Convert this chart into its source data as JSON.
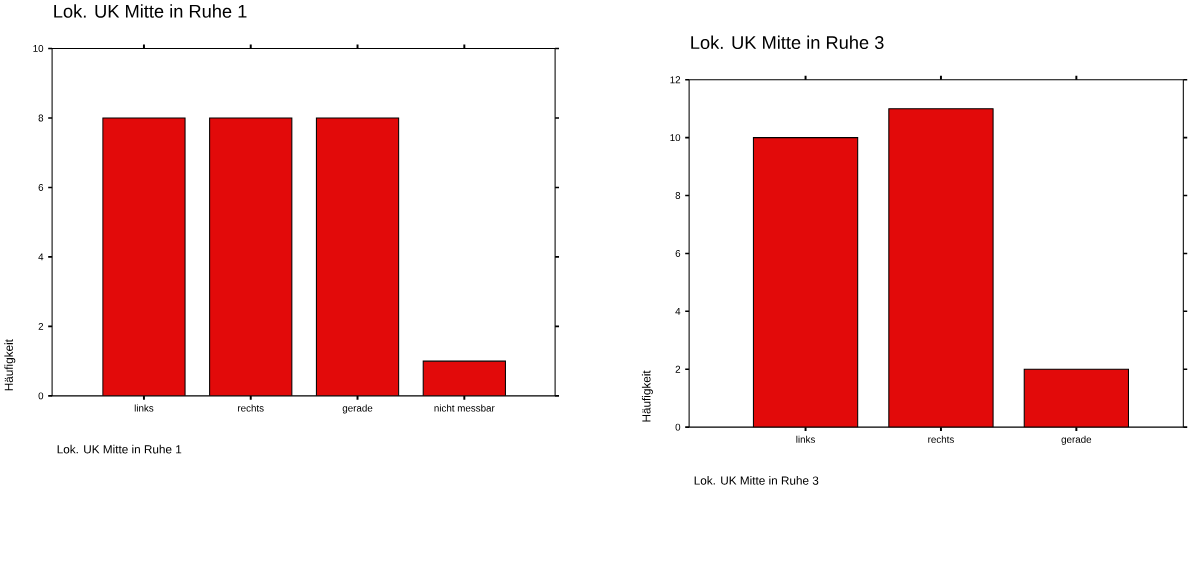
{
  "chart_data": [
    {
      "type": "bar",
      "title": "Lok. UK Mitte in Ruhe 1",
      "xlabel": "Lok. UK Mitte in Ruhe 1",
      "ylabel": "Häufigkeit",
      "categories": [
        "links",
        "rechts",
        "gerade",
        "nicht messbar"
      ],
      "values": [
        8,
        8,
        8,
        1
      ],
      "color": "#e20a0a",
      "ylim": [
        0,
        10
      ],
      "yticks": [
        0,
        2,
        4,
        6,
        8,
        10
      ]
    },
    {
      "type": "bar",
      "title": "Lok. UK Mitte in Ruhe 3",
      "xlabel": "Lok. UK Mitte in Ruhe 3",
      "ylabel": "Häufigkeit",
      "categories": [
        "links",
        "rechts",
        "gerade"
      ],
      "values": [
        10,
        11,
        2
      ],
      "color": "#e20a0a",
      "ylim": [
        0,
        12
      ],
      "yticks": [
        0,
        2,
        4,
        6,
        8,
        10,
        12
      ]
    }
  ]
}
